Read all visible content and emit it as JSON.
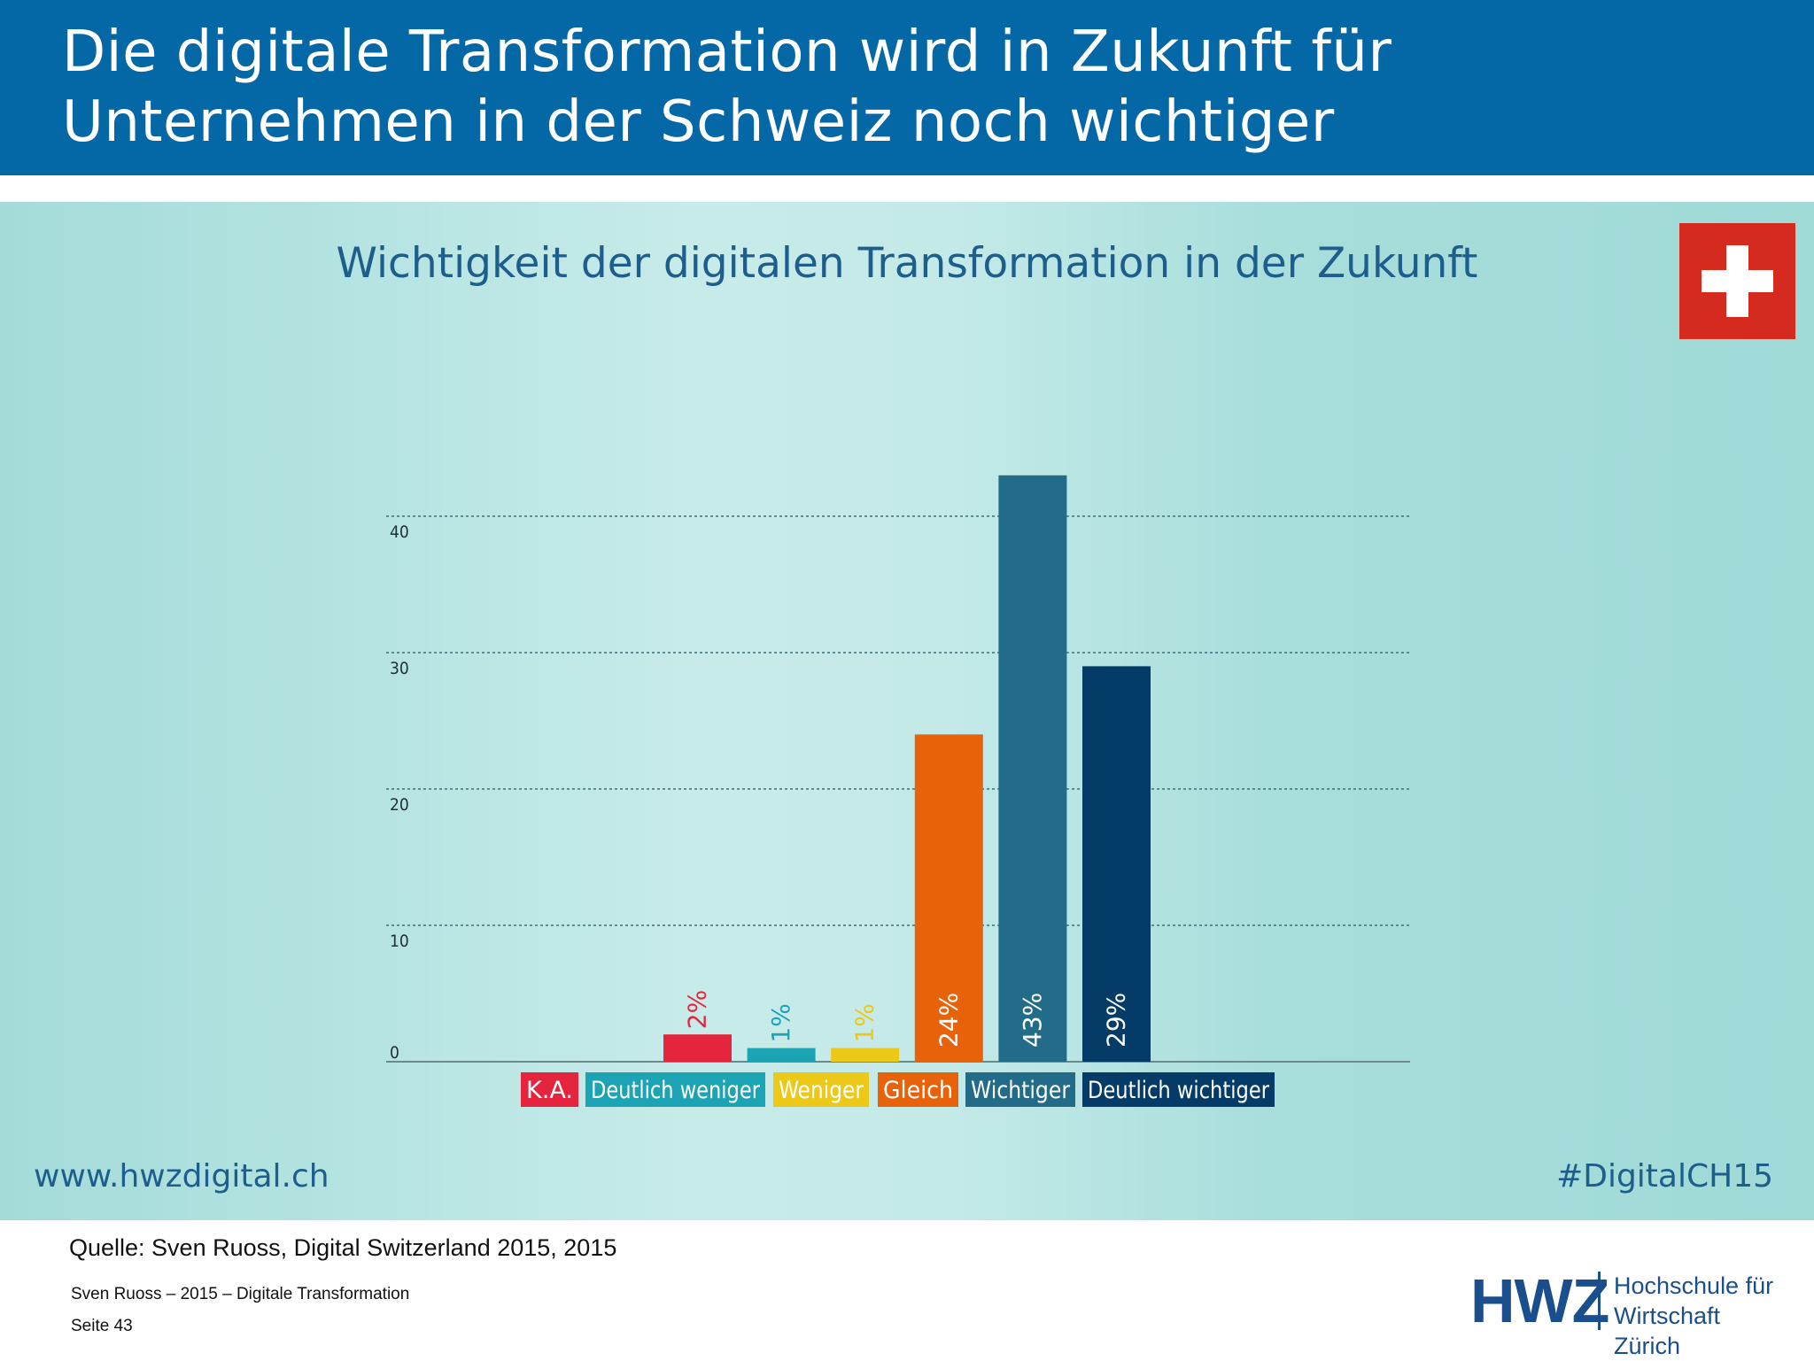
{
  "slide": {
    "title": "Die digitale Transformation wird in Zukunft für Unternehmen in der Schweiz noch wichtiger",
    "website": "www.hwzdigital.ch",
    "hashtag": "#DigitalCH15",
    "source": "Quelle: Sven Ruoss, Digital Switzerland 2015, 2015",
    "author_line": "Sven Ruoss – 2015 – Digitale Transformation",
    "page_label": "Seite 43",
    "flag_icon": "swiss-flag-icon"
  },
  "logo": {
    "abbr": "HWZ",
    "line1": "Hochschule für",
    "line2": "Wirtschaft Zürich",
    "color": "#1a4e8c"
  },
  "colors": {
    "header_bg": "#0467a6",
    "title_text": "#1d5e8d",
    "flag_red": "#d52b1e"
  },
  "chart_data": {
    "type": "bar",
    "title": "Wichtigkeit der digitalen Transformation in der Zukunft",
    "xlabel": "",
    "ylabel": "",
    "ylim": [
      0,
      40
    ],
    "yticks": [
      0,
      10,
      20,
      30,
      40
    ],
    "grid": true,
    "legend_placement": "bottom",
    "categories": [
      "K.A.",
      "Deutlich weniger",
      "Weniger",
      "Gleich",
      "Wichtiger",
      "Deutlich wichtiger"
    ],
    "values": [
      2,
      1,
      1,
      24,
      43,
      29
    ],
    "labels": [
      "2%",
      "1%",
      "1%",
      "24%",
      "43%",
      "29%"
    ],
    "colors": [
      "#e5253d",
      "#1ca3b4",
      "#ecc819",
      "#e8620a",
      "#226c89",
      "#053c67"
    ],
    "label_colors": [
      "#e5253d",
      "#1ca3b4",
      "#ecc819",
      "#ffffff",
      "#ffffff",
      "#ffffff"
    ]
  }
}
